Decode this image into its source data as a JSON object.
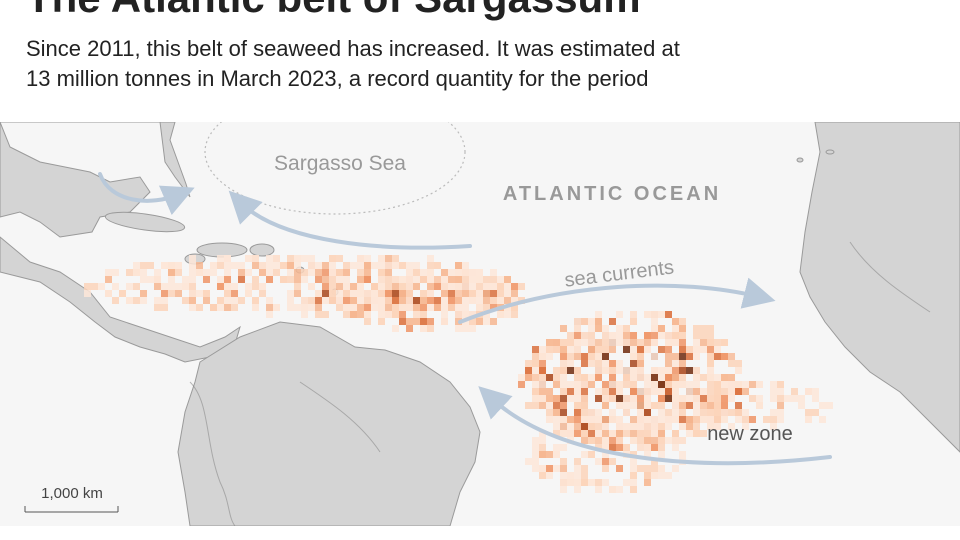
{
  "header": {
    "title": "The Atlantic belt of Sargassum",
    "subtitle_lines": [
      "Since 2011, this belt of seaweed has increased. It was estimated at",
      "13 million tonnes in March 2023, a record quantity for the period"
    ]
  },
  "map": {
    "labels": {
      "sargasso_sea": "Sargasso Sea",
      "ocean": "ATLANTIC OCEAN",
      "currents": "sea currents",
      "new_zone": "new zone"
    },
    "scale_bar": "1,000 km"
  }
}
